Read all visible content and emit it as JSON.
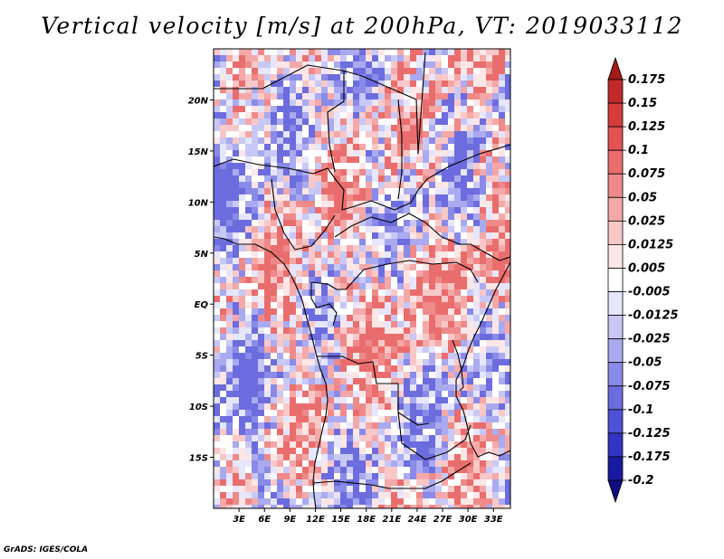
{
  "title": "Vertical velocity [m/s] at 200hPa, VT: 2019033112",
  "credit": "GrADS: IGES/COLA",
  "map": {
    "lon_range": [
      0,
      35
    ],
    "lat_range": [
      -20,
      25
    ],
    "lon_ticks": [
      {
        "value": 3,
        "label": "3E"
      },
      {
        "value": 6,
        "label": "6E"
      },
      {
        "value": 9,
        "label": "9E"
      },
      {
        "value": 12,
        "label": "12E"
      },
      {
        "value": 15,
        "label": "15E"
      },
      {
        "value": 18,
        "label": "18E"
      },
      {
        "value": 21,
        "label": "21E"
      },
      {
        "value": 24,
        "label": "24E"
      },
      {
        "value": 27,
        "label": "27E"
      },
      {
        "value": 30,
        "label": "30E"
      },
      {
        "value": 33,
        "label": "33E"
      }
    ],
    "lat_ticks": [
      {
        "value": 20,
        "label": "20N"
      },
      {
        "value": 15,
        "label": "15N"
      },
      {
        "value": 10,
        "label": "10N"
      },
      {
        "value": 5,
        "label": "5N"
      },
      {
        "value": 0,
        "label": "EQ"
      },
      {
        "value": -5,
        "label": "5S"
      },
      {
        "value": -10,
        "label": "10S"
      },
      {
        "value": -15,
        "label": "15S"
      }
    ]
  },
  "colorbar": {
    "labels": [
      "0.175",
      "0.15",
      "0.125",
      "0.1",
      "0.075",
      "0.05",
      "0.025",
      "0.0125",
      "0.005",
      "-0.005",
      "-0.0125",
      "-0.025",
      "-0.05",
      "-0.075",
      "-0.1",
      "-0.125",
      "-0.175",
      "-0.2"
    ],
    "colors": [
      "#a31a1a",
      "#c02a2a",
      "#d63c3c",
      "#e25353",
      "#ea6d6d",
      "#ef8a8a",
      "#f4a8a8",
      "#f8c8c8",
      "#fce6e6",
      "#ffffff",
      "#e6e6fc",
      "#c8c8f6",
      "#aaaaf0",
      "#8a8ae8",
      "#6c6cde",
      "#5050d4",
      "#3434c2",
      "#1a1aa0",
      "#0d0d80"
    ]
  }
}
